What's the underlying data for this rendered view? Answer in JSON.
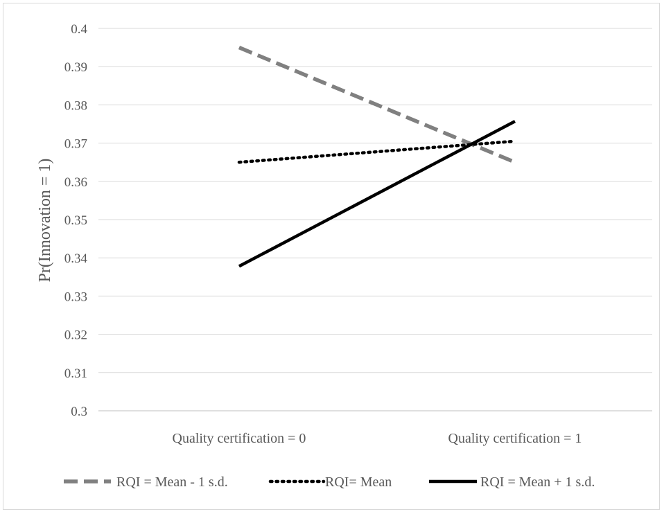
{
  "chart_data": {
    "type": "line",
    "title": "",
    "xlabel": "",
    "ylabel": "Pr(Innovation = 1)",
    "categories": [
      "Quality certification = 0",
      "Quality certification = 1"
    ],
    "ylim": [
      0.3,
      0.4
    ],
    "yticks": [
      "0.3",
      "0.31",
      "0.32",
      "0.33",
      "0.34",
      "0.35",
      "0.36",
      "0.37",
      "0.38",
      "0.39",
      "0.4"
    ],
    "grid": true,
    "legend_position": "bottom",
    "series": [
      {
        "name": "RQI = Mean - 1 s.d.",
        "values": [
          0.395,
          0.365
        ],
        "color": "#808080",
        "style": "dashed"
      },
      {
        "name": "RQI= Mean",
        "values": [
          0.365,
          0.3705
        ],
        "color": "#000000",
        "style": "dotted"
      },
      {
        "name": "RQI = Mean + 1  s.d.",
        "values": [
          0.3378,
          0.3757
        ],
        "color": "#000000",
        "style": "solid"
      }
    ]
  }
}
